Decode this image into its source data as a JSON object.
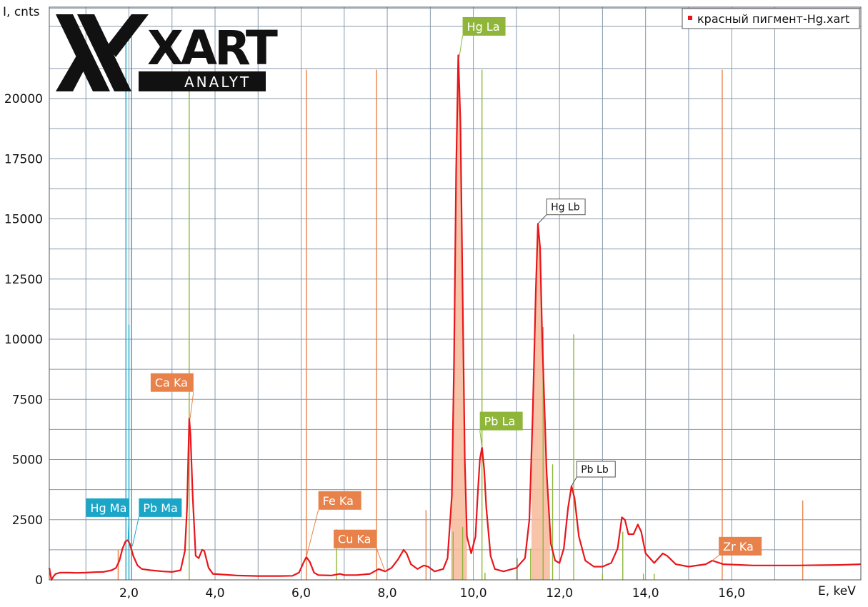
{
  "chart_data": {
    "type": "line",
    "title": "",
    "xlabel": "E, keV",
    "ylabel": "I, cnts",
    "xlim": [
      0.15,
      19.0
    ],
    "ylim": [
      0,
      23800
    ],
    "x_ticks": [
      2.0,
      4.0,
      6.0,
      8.0,
      10.0,
      12.0,
      14.0,
      16.0
    ],
    "x_tick_labels": [
      "2,0",
      "4,0",
      "6,0",
      "8,0",
      "10,0",
      "12,0",
      "14,0",
      "16,0"
    ],
    "y_ticks": [
      0,
      2500,
      5000,
      7500,
      10000,
      12500,
      15000,
      17500,
      20000
    ],
    "y_tick_labels": [
      "0",
      "2500",
      "5000",
      "7500",
      "10000",
      "12500",
      "15000",
      "17500",
      "20000"
    ],
    "grid": true,
    "legend": {
      "position": "top-right",
      "entries": [
        "красный пигмент-Hg.xart"
      ]
    },
    "logo": {
      "mark": "XART",
      "sub": "ANALYT"
    },
    "colors": {
      "spectrum": "#e8161b",
      "fill": "#f6b99a",
      "grid": "#8899aa",
      "hg_pb_M": "#1ba6c8",
      "hg_pb_L": "#8fb63a",
      "k_lines": "#e8824a",
      "label_white_border": "#555555"
    },
    "series": [
      {
        "name": "красный пигмент-Hg.xart",
        "points": [
          [
            0.15,
            500
          ],
          [
            0.2,
            0
          ],
          [
            0.25,
            150
          ],
          [
            0.3,
            250
          ],
          [
            0.4,
            300
          ],
          [
            0.6,
            300
          ],
          [
            0.8,
            290
          ],
          [
            1.0,
            300
          ],
          [
            1.2,
            320
          ],
          [
            1.4,
            330
          ],
          [
            1.6,
            400
          ],
          [
            1.7,
            500
          ],
          [
            1.78,
            800
          ],
          [
            1.85,
            1300
          ],
          [
            1.92,
            1600
          ],
          [
            1.97,
            1650
          ],
          [
            2.02,
            1500
          ],
          [
            2.1,
            1000
          ],
          [
            2.2,
            600
          ],
          [
            2.3,
            450
          ],
          [
            2.5,
            400
          ],
          [
            2.8,
            350
          ],
          [
            3.0,
            330
          ],
          [
            3.2,
            400
          ],
          [
            3.3,
            1200
          ],
          [
            3.35,
            3000
          ],
          [
            3.4,
            6700
          ],
          [
            3.43,
            6000
          ],
          [
            3.48,
            3500
          ],
          [
            3.55,
            1000
          ],
          [
            3.62,
            900
          ],
          [
            3.7,
            1250
          ],
          [
            3.75,
            1200
          ],
          [
            3.85,
            500
          ],
          [
            3.95,
            250
          ],
          [
            4.2,
            220
          ],
          [
            4.5,
            180
          ],
          [
            5.0,
            160
          ],
          [
            5.5,
            160
          ],
          [
            5.8,
            170
          ],
          [
            5.95,
            300
          ],
          [
            6.05,
            700
          ],
          [
            6.12,
            950
          ],
          [
            6.2,
            750
          ],
          [
            6.3,
            300
          ],
          [
            6.4,
            200
          ],
          [
            6.7,
            180
          ],
          [
            6.9,
            250
          ],
          [
            7.0,
            200
          ],
          [
            7.3,
            200
          ],
          [
            7.6,
            250
          ],
          [
            7.8,
            450
          ],
          [
            7.95,
            350
          ],
          [
            8.1,
            500
          ],
          [
            8.25,
            850
          ],
          [
            8.38,
            1250
          ],
          [
            8.45,
            1100
          ],
          [
            8.55,
            650
          ],
          [
            8.7,
            450
          ],
          [
            8.85,
            600
          ],
          [
            8.95,
            550
          ],
          [
            9.1,
            350
          ],
          [
            9.3,
            450
          ],
          [
            9.4,
            900
          ],
          [
            9.5,
            3500
          ],
          [
            9.55,
            9000
          ],
          [
            9.6,
            17000
          ],
          [
            9.65,
            21800
          ],
          [
            9.7,
            19000
          ],
          [
            9.75,
            12000
          ],
          [
            9.8,
            5000
          ],
          [
            9.85,
            1800
          ],
          [
            9.95,
            1100
          ],
          [
            10.05,
            1800
          ],
          [
            10.1,
            3500
          ],
          [
            10.15,
            5000
          ],
          [
            10.2,
            5500
          ],
          [
            10.25,
            4600
          ],
          [
            10.3,
            3000
          ],
          [
            10.4,
            1000
          ],
          [
            10.5,
            450
          ],
          [
            10.7,
            350
          ],
          [
            11.0,
            500
          ],
          [
            11.2,
            900
          ],
          [
            11.3,
            2500
          ],
          [
            11.38,
            7000
          ],
          [
            11.45,
            12000
          ],
          [
            11.5,
            14800
          ],
          [
            11.55,
            13800
          ],
          [
            11.6,
            10000
          ],
          [
            11.7,
            4500
          ],
          [
            11.8,
            1500
          ],
          [
            11.9,
            800
          ],
          [
            12.0,
            700
          ],
          [
            12.1,
            1300
          ],
          [
            12.2,
            3000
          ],
          [
            12.28,
            3900
          ],
          [
            12.35,
            3400
          ],
          [
            12.45,
            1800
          ],
          [
            12.6,
            800
          ],
          [
            12.8,
            550
          ],
          [
            13.0,
            550
          ],
          [
            13.2,
            700
          ],
          [
            13.35,
            1300
          ],
          [
            13.45,
            2600
          ],
          [
            13.52,
            2500
          ],
          [
            13.6,
            1900
          ],
          [
            13.72,
            1900
          ],
          [
            13.82,
            2300
          ],
          [
            13.9,
            2000
          ],
          [
            14.0,
            1100
          ],
          [
            14.2,
            700
          ],
          [
            14.4,
            1100
          ],
          [
            14.5,
            1000
          ],
          [
            14.7,
            650
          ],
          [
            15.0,
            550
          ],
          [
            15.4,
            650
          ],
          [
            15.55,
            800
          ],
          [
            15.8,
            650
          ],
          [
            16.5,
            600
          ],
          [
            17.5,
            600
          ],
          [
            18.5,
            620
          ],
          [
            19.0,
            650
          ]
        ]
      }
    ],
    "element_lines": [
      {
        "e": 1.75,
        "h": 1250,
        "group": "k"
      },
      {
        "e": 1.93,
        "h": 23000,
        "group": "M"
      },
      {
        "e": 2.0,
        "h": 10600,
        "group": "M"
      },
      {
        "e": 2.06,
        "h": 23000,
        "group": "M"
      },
      {
        "e": 3.4,
        "h": 21200,
        "group": "L"
      },
      {
        "e": 6.12,
        "h": 21200,
        "group": "k"
      },
      {
        "e": 6.82,
        "h": 2100,
        "group": "L"
      },
      {
        "e": 7.75,
        "h": 21200,
        "group": "k"
      },
      {
        "e": 8.9,
        "h": 2900,
        "group": "k"
      },
      {
        "e": 9.53,
        "h": 2000,
        "group": "L"
      },
      {
        "e": 9.75,
        "h": 2200,
        "group": "L"
      },
      {
        "e": 10.2,
        "h": 21200,
        "group": "L"
      },
      {
        "e": 10.27,
        "h": 300,
        "group": "L"
      },
      {
        "e": 11.02,
        "h": 900,
        "group": "L"
      },
      {
        "e": 11.33,
        "h": 1300,
        "group": "L"
      },
      {
        "e": 11.62,
        "h": 10500,
        "group": "L"
      },
      {
        "e": 11.84,
        "h": 4800,
        "group": "L"
      },
      {
        "e": 12.33,
        "h": 10200,
        "group": "L"
      },
      {
        "e": 13.0,
        "h": 250,
        "group": "L"
      },
      {
        "e": 13.47,
        "h": 2000,
        "group": "L"
      },
      {
        "e": 13.95,
        "h": 250,
        "group": "L"
      },
      {
        "e": 14.2,
        "h": 250,
        "group": "L"
      },
      {
        "e": 15.78,
        "h": 21200,
        "group": "k"
      },
      {
        "e": 17.65,
        "h": 3300,
        "group": "k"
      }
    ],
    "fill_regions": [
      [
        9.48,
        9.85
      ],
      [
        11.35,
        11.78
      ]
    ],
    "annotations": [
      {
        "text": "Hg Ma",
        "e": 1.98,
        "y": 1650,
        "style": "M",
        "lx": 2.0,
        "ly": 3000,
        "anchor": "end"
      },
      {
        "text": "Pb Ma",
        "e": 2.08,
        "y": 1400,
        "style": "M",
        "lx": 2.23,
        "ly": 3000,
        "anchor": "start"
      },
      {
        "text": "Ca Ka",
        "e": 3.42,
        "y": 6700,
        "style": "k",
        "lx": 3.5,
        "ly": 8200,
        "anchor": "end"
      },
      {
        "text": "Fe Ka",
        "e": 6.12,
        "y": 950,
        "style": "k",
        "lx": 6.4,
        "ly": 3300,
        "anchor": "start"
      },
      {
        "text": "Cu Ka",
        "e": 7.95,
        "y": 350,
        "style": "k",
        "lx": 7.75,
        "ly": 1700,
        "anchor": "end"
      },
      {
        "text": "Hg La",
        "e": 9.67,
        "y": 21700,
        "style": "L",
        "lx": 9.75,
        "ly": 23000,
        "anchor": "start"
      },
      {
        "text": "Pb La",
        "e": 10.2,
        "y": 5500,
        "style": "L",
        "lx": 10.15,
        "ly": 6600,
        "anchor": "start"
      },
      {
        "text": "Hg Lb",
        "e": 11.5,
        "y": 14800,
        "style": "plain",
        "lx": 11.7,
        "ly": 15500,
        "anchor": "start"
      },
      {
        "text": "Pb Lb",
        "e": 12.28,
        "y": 3900,
        "style": "plain",
        "lx": 12.4,
        "ly": 4600,
        "anchor": "start"
      },
      {
        "text": "Zr Ka",
        "e": 15.55,
        "y": 800,
        "style": "k",
        "lx": 15.7,
        "ly": 1400,
        "anchor": "start"
      }
    ]
  }
}
